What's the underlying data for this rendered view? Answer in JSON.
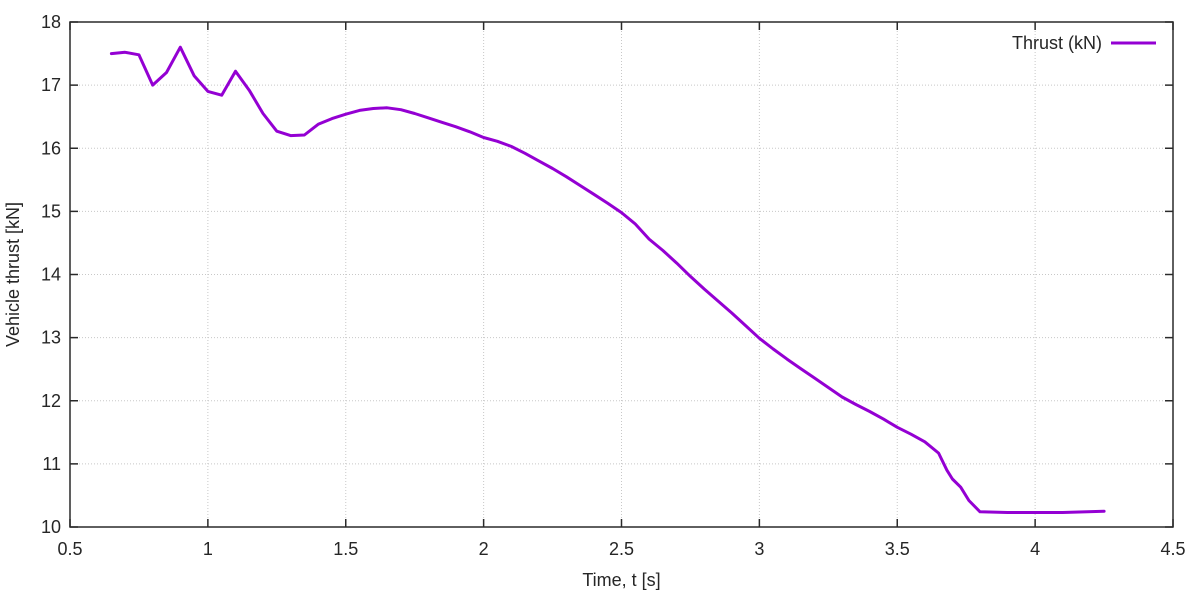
{
  "page": {
    "background_color": "#ffffff"
  },
  "colors": {
    "series_line": "#9400d3",
    "grid": "#c8c8c8",
    "axis": "#2a2a2a",
    "text": "#262626",
    "background": "#ffffff"
  },
  "chart_data": {
    "type": "line",
    "title": "",
    "xlabel": "Time, t [s]",
    "ylabel": "Vehicle thrust [kN]",
    "xlim": [
      0.5,
      4.5
    ],
    "ylim": [
      10,
      18
    ],
    "grid": true,
    "grid_style": "dotted",
    "legend": {
      "position": "top-right-inside",
      "label": "Thrust (kN)"
    },
    "xticks": [
      {
        "v": 0.5,
        "label": "0.5"
      },
      {
        "v": 1.0,
        "label": "1"
      },
      {
        "v": 1.5,
        "label": "1.5"
      },
      {
        "v": 2.0,
        "label": "2"
      },
      {
        "v": 2.5,
        "label": "2.5"
      },
      {
        "v": 3.0,
        "label": "3"
      },
      {
        "v": 3.5,
        "label": "3.5"
      },
      {
        "v": 4.0,
        "label": "4"
      },
      {
        "v": 4.5,
        "label": "4.5"
      }
    ],
    "yticks": [
      {
        "v": 10,
        "label": "10"
      },
      {
        "v": 11,
        "label": "11"
      },
      {
        "v": 12,
        "label": "12"
      },
      {
        "v": 13,
        "label": "13"
      },
      {
        "v": 14,
        "label": "14"
      },
      {
        "v": 15,
        "label": "15"
      },
      {
        "v": 16,
        "label": "16"
      },
      {
        "v": 17,
        "label": "17"
      },
      {
        "v": 18,
        "label": "18"
      }
    ],
    "series": [
      {
        "name": "Thrust (kN)",
        "color": "#9400d3",
        "points": [
          [
            0.65,
            17.5
          ],
          [
            0.7,
            17.52
          ],
          [
            0.75,
            17.48
          ],
          [
            0.8,
            17.0
          ],
          [
            0.85,
            17.2
          ],
          [
            0.9,
            17.6
          ],
          [
            0.95,
            17.15
          ],
          [
            1.0,
            16.9
          ],
          [
            1.05,
            16.84
          ],
          [
            1.1,
            17.22
          ],
          [
            1.15,
            16.92
          ],
          [
            1.2,
            16.55
          ],
          [
            1.25,
            16.27
          ],
          [
            1.3,
            16.2
          ],
          [
            1.35,
            16.21
          ],
          [
            1.4,
            16.38
          ],
          [
            1.45,
            16.47
          ],
          [
            1.5,
            16.54
          ],
          [
            1.55,
            16.6
          ],
          [
            1.6,
            16.63
          ],
          [
            1.65,
            16.64
          ],
          [
            1.7,
            16.61
          ],
          [
            1.75,
            16.55
          ],
          [
            1.8,
            16.48
          ],
          [
            1.85,
            16.41
          ],
          [
            1.9,
            16.34
          ],
          [
            1.95,
            16.26
          ],
          [
            2.0,
            16.17
          ],
          [
            2.05,
            16.11
          ],
          [
            2.1,
            16.03
          ],
          [
            2.15,
            15.92
          ],
          [
            2.2,
            15.8
          ],
          [
            2.25,
            15.68
          ],
          [
            2.3,
            15.55
          ],
          [
            2.35,
            15.41
          ],
          [
            2.4,
            15.27
          ],
          [
            2.45,
            15.13
          ],
          [
            2.5,
            14.98
          ],
          [
            2.55,
            14.8
          ],
          [
            2.6,
            14.56
          ],
          [
            2.65,
            14.38
          ],
          [
            2.7,
            14.18
          ],
          [
            2.75,
            13.97
          ],
          [
            2.8,
            13.77
          ],
          [
            2.85,
            13.58
          ],
          [
            2.9,
            13.39
          ],
          [
            2.95,
            13.19
          ],
          [
            3.0,
            12.99
          ],
          [
            3.05,
            12.82
          ],
          [
            3.1,
            12.66
          ],
          [
            3.15,
            12.51
          ],
          [
            3.2,
            12.36
          ],
          [
            3.25,
            12.21
          ],
          [
            3.3,
            12.06
          ],
          [
            3.35,
            11.94
          ],
          [
            3.4,
            11.83
          ],
          [
            3.45,
            11.71
          ],
          [
            3.5,
            11.58
          ],
          [
            3.55,
            11.47
          ],
          [
            3.6,
            11.35
          ],
          [
            3.65,
            11.17
          ],
          [
            3.68,
            10.9
          ],
          [
            3.7,
            10.76
          ],
          [
            3.73,
            10.63
          ],
          [
            3.76,
            10.42
          ],
          [
            3.8,
            10.24
          ],
          [
            3.9,
            10.23
          ],
          [
            4.0,
            10.23
          ],
          [
            4.1,
            10.23
          ],
          [
            4.25,
            10.25
          ]
        ]
      }
    ]
  }
}
